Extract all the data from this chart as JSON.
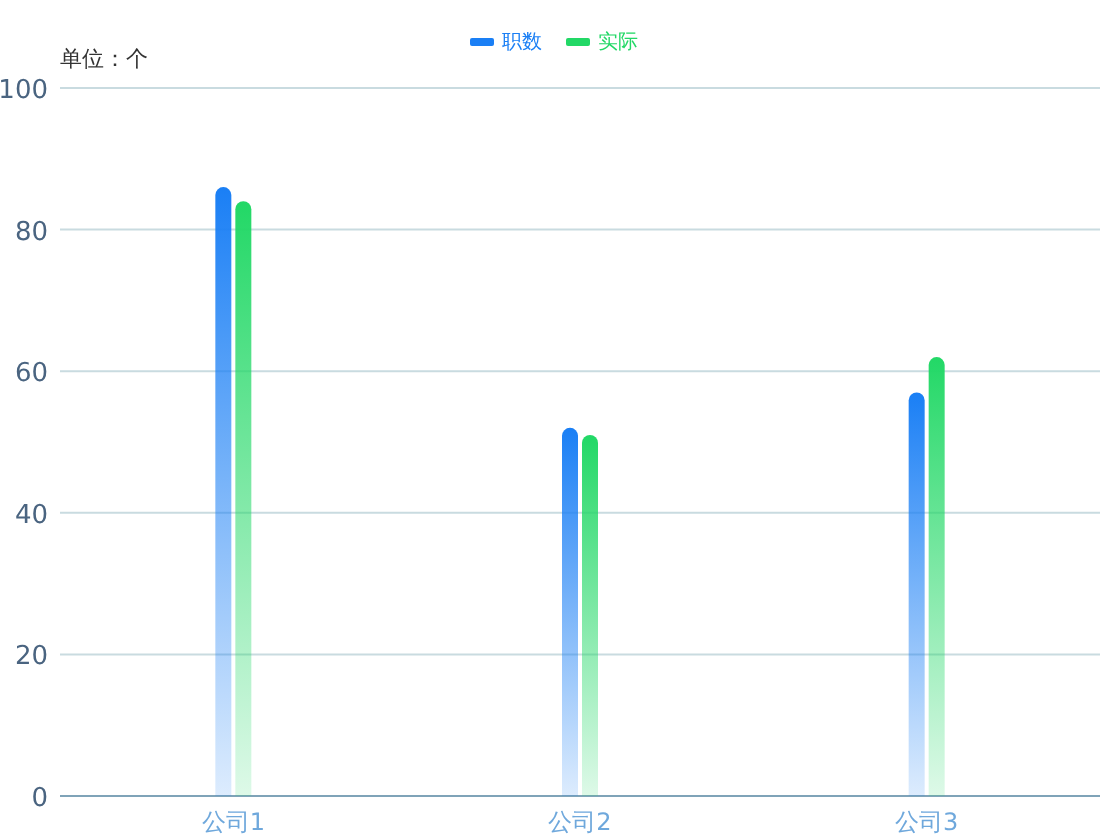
{
  "chart_data": {
    "type": "bar",
    "ylabel": "单位：个",
    "categories": [
      "公司1",
      "公司2",
      "公司3"
    ],
    "series": [
      {
        "name": "职数",
        "color": "#1a7ff5",
        "values": [
          86,
          52,
          57
        ]
      },
      {
        "name": "实际",
        "color": "#22d866",
        "values": [
          84,
          51,
          62
        ]
      }
    ],
    "ylim": [
      0,
      100
    ],
    "yticks": [
      0,
      20,
      40,
      60,
      80,
      100
    ],
    "grid": "y",
    "legend": "top"
  }
}
